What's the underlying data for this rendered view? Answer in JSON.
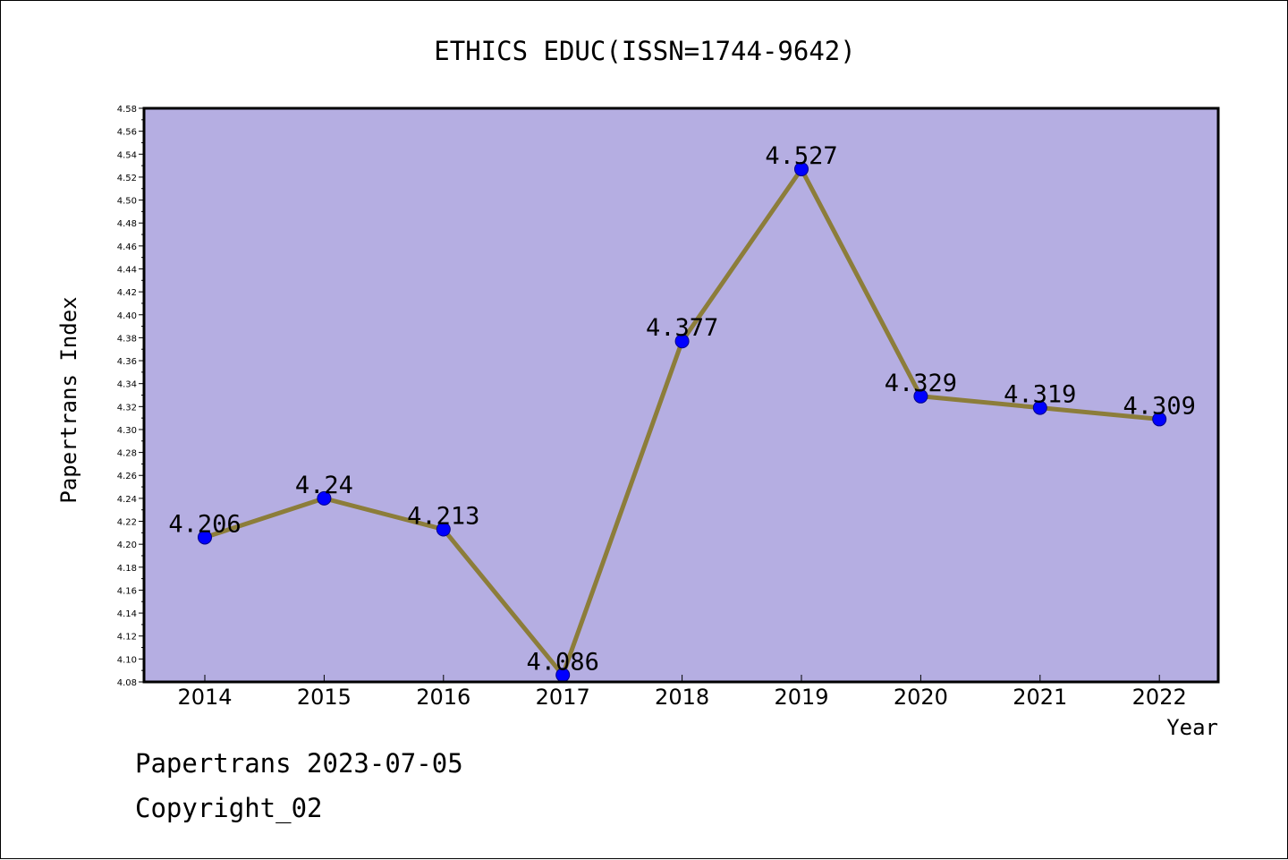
{
  "chart_data": {
    "type": "line",
    "title": "ETHICS EDUC(ISSN=1744-9642)",
    "xlabel": "Year",
    "ylabel": "Papertrans Index",
    "categories": [
      "2014",
      "2015",
      "2016",
      "2017",
      "2018",
      "2019",
      "2020",
      "2021",
      "2022"
    ],
    "series": [
      {
        "values": [
          4.206,
          4.24,
          4.213,
          4.086,
          4.377,
          4.527,
          4.329,
          4.319,
          4.309
        ],
        "labels": [
          "4.206",
          "4.24",
          "4.213",
          "4.086",
          "4.377",
          "4.527",
          "4.329",
          "4.319",
          "4.309"
        ]
      }
    ],
    "ylim": [
      4.08,
      4.58
    ],
    "yticks": [
      "4.08",
      "4.10",
      "4.12",
      "4.14",
      "4.16",
      "4.18",
      "4.20",
      "4.22",
      "4.24",
      "4.26",
      "4.28",
      "4.30",
      "4.32",
      "4.34",
      "4.36",
      "4.38",
      "4.40",
      "4.42",
      "4.44",
      "4.46",
      "4.48",
      "4.50",
      "4.52",
      "4.54",
      "4.56",
      "4.58"
    ],
    "grid": false,
    "legend": "none",
    "colors": {
      "plot_background": "#b5aee2",
      "line": "#8c7d3a",
      "marker": "#0000ff"
    }
  },
  "footer": {
    "line1": "Papertrans 2023-07-05",
    "line2": "Copyright_02"
  }
}
